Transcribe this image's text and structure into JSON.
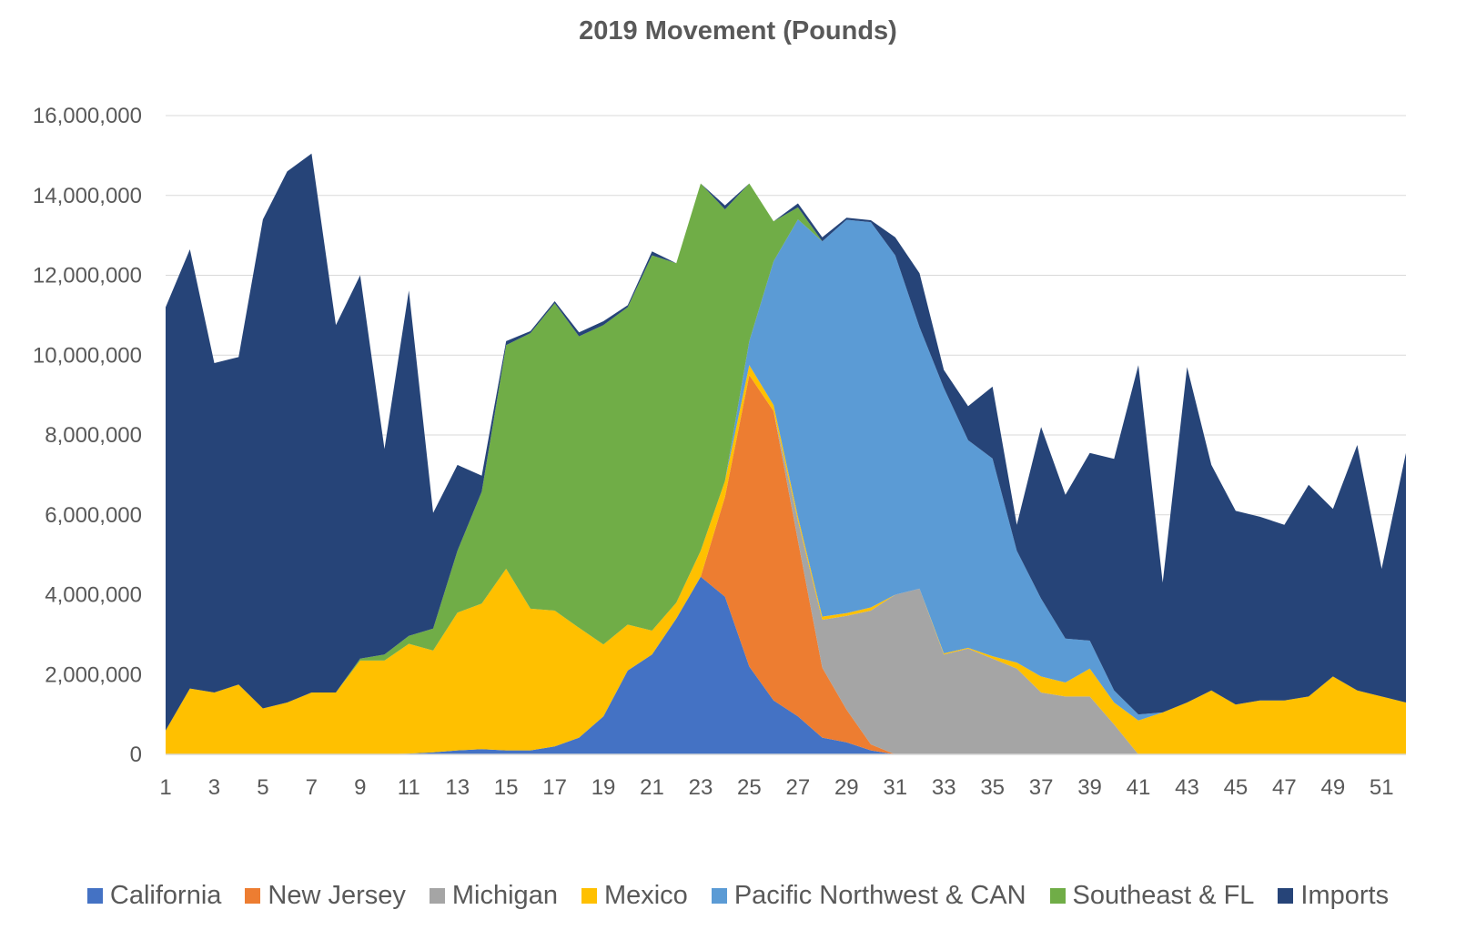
{
  "chart_data": {
    "type": "area",
    "stacked": true,
    "title": "2019 Movement (Pounds)",
    "xlabel": "",
    "ylabel": "",
    "ylim": [
      0,
      16000000
    ],
    "yticks": [
      0,
      2000000,
      4000000,
      6000000,
      8000000,
      10000000,
      12000000,
      14000000,
      16000000
    ],
    "ytick_labels": [
      "0",
      "2,000,000",
      "4,000,000",
      "6,000,000",
      "8,000,000",
      "10,000,000",
      "12,000,000",
      "14,000,000",
      "16,000,000"
    ],
    "x": [
      1,
      2,
      3,
      4,
      5,
      6,
      7,
      8,
      9,
      10,
      11,
      12,
      13,
      14,
      15,
      16,
      17,
      18,
      19,
      20,
      21,
      22,
      23,
      24,
      25,
      26,
      27,
      28,
      29,
      30,
      31,
      32,
      33,
      34,
      35,
      36,
      37,
      38,
      39,
      40,
      41,
      42,
      43,
      44,
      45,
      46,
      47,
      48,
      49,
      50,
      51,
      52
    ],
    "xtick_labels": [
      "1",
      "3",
      "5",
      "7",
      "9",
      "11",
      "13",
      "15",
      "17",
      "19",
      "21",
      "23",
      "25",
      "27",
      "29",
      "31",
      "33",
      "35",
      "37",
      "39",
      "41",
      "43",
      "45",
      "47",
      "49",
      "51"
    ],
    "grid": "horizontal",
    "legend_position": "bottom",
    "series": [
      {
        "name": "California",
        "color": "#4472C4",
        "values": [
          0,
          0,
          0,
          0,
          0,
          0,
          0,
          0,
          0,
          0,
          20000,
          50000,
          100000,
          130000,
          100000,
          100000,
          200000,
          420000,
          950000,
          2100000,
          2500000,
          3400000,
          4450000,
          3950000,
          2200000,
          1350000,
          950000,
          420000,
          300000,
          100000,
          0,
          0,
          0,
          0,
          0,
          0,
          0,
          0,
          0,
          0,
          0,
          0,
          0,
          0,
          0,
          0,
          0,
          0,
          0,
          0,
          0,
          0
        ]
      },
      {
        "name": "New Jersey",
        "color": "#ED7D31",
        "values": [
          0,
          0,
          0,
          0,
          0,
          0,
          0,
          0,
          0,
          0,
          0,
          0,
          0,
          0,
          0,
          0,
          0,
          0,
          0,
          0,
          0,
          0,
          0,
          2500000,
          7300000,
          7250000,
          4400000,
          1750000,
          820000,
          150000,
          0,
          0,
          0,
          0,
          0,
          0,
          0,
          0,
          0,
          0,
          0,
          0,
          0,
          0,
          0,
          0,
          0,
          0,
          0,
          0,
          0,
          0
        ]
      },
      {
        "name": "Michigan",
        "color": "#A5A5A5",
        "values": [
          0,
          0,
          0,
          0,
          0,
          0,
          0,
          0,
          0,
          0,
          0,
          0,
          0,
          0,
          0,
          0,
          0,
          0,
          0,
          0,
          0,
          0,
          0,
          0,
          0,
          0,
          500000,
          1200000,
          2350000,
          3350000,
          4000000,
          4150000,
          2500000,
          2650000,
          2400000,
          2150000,
          1550000,
          1450000,
          1450000,
          750000,
          0,
          0,
          0,
          0,
          0,
          0,
          0,
          0,
          0,
          0,
          0,
          0
        ]
      },
      {
        "name": "Mexico",
        "color": "#FFC000",
        "values": [
          600000,
          1650000,
          1550000,
          1750000,
          1150000,
          1300000,
          1550000,
          1550000,
          2350000,
          2350000,
          2750000,
          2550000,
          3450000,
          3650000,
          4550000,
          3550000,
          3400000,
          2750000,
          1800000,
          1150000,
          600000,
          400000,
          650000,
          400000,
          250000,
          150000,
          100000,
          80000,
          70000,
          80000,
          0,
          0,
          30000,
          20000,
          60000,
          150000,
          400000,
          350000,
          700000,
          550000,
          850000,
          1050000,
          1300000,
          1600000,
          1250000,
          1350000,
          1350000,
          1450000,
          1950000,
          1600000,
          1450000,
          1300000
        ]
      },
      {
        "name": "Pacific Northwest & CAN",
        "color": "#5B9BD5",
        "values": [
          0,
          0,
          0,
          0,
          0,
          0,
          0,
          0,
          0,
          0,
          0,
          0,
          0,
          0,
          0,
          0,
          0,
          0,
          0,
          0,
          0,
          0,
          0,
          0,
          600000,
          3600000,
          7450000,
          9400000,
          9850000,
          9650000,
          8500000,
          6550000,
          6650000,
          5200000,
          4950000,
          2800000,
          1950000,
          1100000,
          700000,
          300000,
          150000,
          0,
          0,
          0,
          0,
          0,
          0,
          0,
          0,
          0,
          0,
          0
        ]
      },
      {
        "name": "Southeast & FL",
        "color": "#70AD47",
        "values": [
          0,
          0,
          0,
          0,
          0,
          0,
          0,
          0,
          50000,
          150000,
          200000,
          550000,
          1550000,
          2800000,
          5600000,
          6900000,
          7700000,
          7300000,
          8000000,
          7950000,
          9400000,
          8500000,
          9200000,
          6800000,
          3950000,
          1000000,
          300000,
          0,
          0,
          0,
          0,
          0,
          0,
          0,
          0,
          0,
          0,
          0,
          0,
          0,
          0,
          0,
          0,
          0,
          0,
          0,
          0,
          0,
          0,
          0,
          0,
          0
        ]
      },
      {
        "name": "Imports",
        "color": "#264478",
        "values": [
          10600000,
          11000000,
          8250000,
          8200000,
          12250000,
          13300000,
          13500000,
          9200000,
          9600000,
          5150000,
          8650000,
          2900000,
          2150000,
          400000,
          100000,
          50000,
          50000,
          100000,
          100000,
          50000,
          100000,
          0,
          0,
          100000,
          0,
          0,
          100000,
          100000,
          50000,
          50000,
          450000,
          1350000,
          450000,
          850000,
          1800000,
          650000,
          4300000,
          3600000,
          4700000,
          5800000,
          8750000,
          3250000,
          8400000,
          5650000,
          4850000,
          4600000,
          4400000,
          5300000,
          4200000,
          6150000,
          3200000,
          6250000
        ]
      }
    ]
  }
}
